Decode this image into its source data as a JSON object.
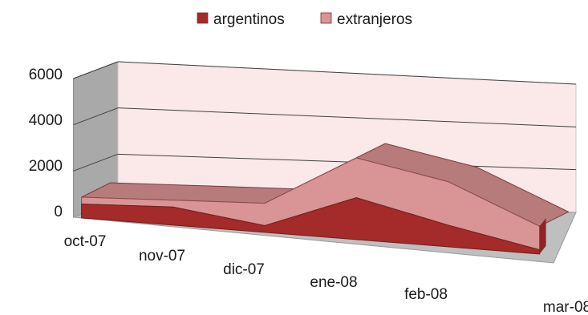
{
  "chart_data": {
    "type": "area",
    "stacked": true,
    "three_d": true,
    "title": "",
    "xlabel": "",
    "ylabel": "",
    "categories": [
      "oct-07",
      "nov-07",
      "dic-07",
      "ene-08",
      "feb-08",
      "mar-08"
    ],
    "series": [
      {
        "name": "argentinos",
        "values": [
          600,
          800,
          300,
          1900,
          1000,
          200
        ],
        "color": "#a52a2a"
      },
      {
        "name": "extranjeros",
        "values": [
          300,
          300,
          1000,
          1800,
          2000,
          1100
        ],
        "color": "#d99595"
      }
    ],
    "yticks": [
      0,
      2000,
      4000,
      6000
    ],
    "ylim": [
      0,
      6000
    ],
    "grid": true,
    "legend_position": "top"
  }
}
